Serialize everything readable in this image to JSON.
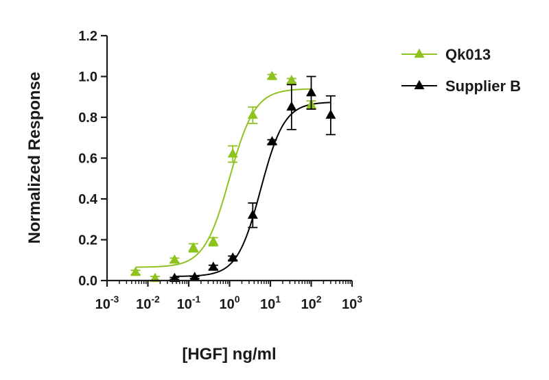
{
  "chart_data": {
    "type": "scatter",
    "xlabel": "[HGF] ng/ml",
    "ylabel": "Normalized Response",
    "x_scale": "log10",
    "xlim": [
      0.001,
      1000
    ],
    "ylim": [
      0,
      1.2
    ],
    "x_ticks": [
      {
        "base": "10",
        "exp": "-3",
        "value": 0.001
      },
      {
        "base": "10",
        "exp": "-2",
        "value": 0.01
      },
      {
        "base": "10",
        "exp": "-1",
        "value": 0.1
      },
      {
        "base": "10",
        "exp": "0",
        "value": 1
      },
      {
        "base": "10",
        "exp": "1",
        "value": 10
      },
      {
        "base": "10",
        "exp": "2",
        "value": 100
      },
      {
        "base": "10",
        "exp": "3",
        "value": 1000
      }
    ],
    "y_ticks": [
      "0.0",
      "0.2",
      "0.4",
      "0.6",
      "0.8",
      "1.0",
      "1.2"
    ],
    "grid": false,
    "legend_position": "top-right",
    "series": [
      {
        "name": "Qk013",
        "color": "#8dc21f",
        "marker": "triangle",
        "points": [
          {
            "x": 0.005,
            "y": 0.04,
            "err": 0.01
          },
          {
            "x": 0.015,
            "y": 0.01,
            "err": 0.01
          },
          {
            "x": 0.045,
            "y": 0.1,
            "err": 0.01
          },
          {
            "x": 0.13,
            "y": 0.16,
            "err": 0.02
          },
          {
            "x": 0.4,
            "y": 0.19,
            "err": 0.02
          },
          {
            "x": 1.2,
            "y": 0.62,
            "err": 0.04
          },
          {
            "x": 3.7,
            "y": 0.81,
            "err": 0.04
          },
          {
            "x": 11,
            "y": 1.0,
            "err": 0.01
          },
          {
            "x": 33,
            "y": 0.98,
            "err": 0.01
          },
          {
            "x": 100,
            "y": 0.86,
            "err": 0.02
          }
        ],
        "fit": {
          "bottom": 0.065,
          "top": 0.94,
          "ec50": 1.0,
          "hill": 1.4
        }
      },
      {
        "name": "Supplier B",
        "color": "#000000",
        "marker": "triangle",
        "points": [
          {
            "x": 0.045,
            "y": 0.01,
            "err": 0.005
          },
          {
            "x": 0.14,
            "y": 0.015,
            "err": 0.005
          },
          {
            "x": 0.4,
            "y": 0.065,
            "err": 0.01
          },
          {
            "x": 1.2,
            "y": 0.11,
            "err": 0.01
          },
          {
            "x": 3.7,
            "y": 0.32,
            "err": 0.06
          },
          {
            "x": 11,
            "y": 0.68,
            "err": 0.01
          },
          {
            "x": 33,
            "y": 0.85,
            "err": 0.11
          },
          {
            "x": 100,
            "y": 0.92,
            "err": 0.08
          },
          {
            "x": 300,
            "y": 0.81,
            "err": 0.095
          }
        ],
        "fit": {
          "bottom": 0.02,
          "top": 0.875,
          "ec50": 5.8,
          "hill": 1.5
        }
      }
    ]
  }
}
